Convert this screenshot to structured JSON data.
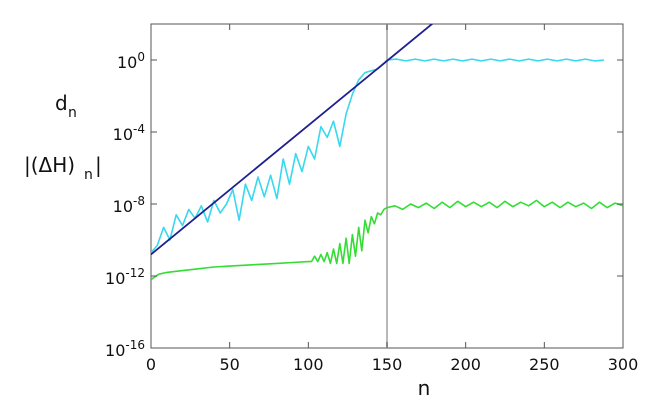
{
  "chart_data": {
    "type": "line",
    "title": "",
    "xlabel": "n",
    "ylabel_lines": [
      "d",
      "n",
      "|(ΔH)",
      "n",
      "|"
    ],
    "xlim": [
      0,
      300
    ],
    "ylim_log10": [
      -16,
      2
    ],
    "y_scale": "log",
    "grid": false,
    "legend": "none",
    "x_ticks": [
      0,
      50,
      100,
      150,
      200,
      250,
      300
    ],
    "x_tick_labels": [
      "0",
      "50",
      "100",
      "150",
      "200",
      "250",
      "300"
    ],
    "y_ticks_log10": [
      -16,
      -12,
      -8,
      -4,
      0
    ],
    "y_tick_labels": [
      {
        "base": "10",
        "exp": "-16"
      },
      {
        "base": "10",
        "exp": "-12"
      },
      {
        "base": "10",
        "exp": "-8"
      },
      {
        "base": "10",
        "exp": "-4"
      },
      {
        "base": "10",
        "exp": "0"
      }
    ],
    "vertical_marker": {
      "x": 150,
      "color": "#b8b8b8"
    },
    "series": [
      {
        "color": "#38d8ee",
        "x": [
          0,
          4,
          8,
          12,
          16,
          20,
          24,
          28,
          32,
          36,
          40,
          44,
          48,
          52,
          56,
          60,
          64,
          68,
          72,
          76,
          80,
          84,
          88,
          92,
          96,
          100,
          104,
          108,
          112,
          116,
          120,
          124,
          128,
          132,
          136,
          140,
          144,
          148,
          150,
          156,
          162,
          168,
          174,
          180,
          186,
          192,
          198,
          204,
          210,
          216,
          222,
          228,
          234,
          240,
          246,
          252,
          258,
          264,
          270,
          276,
          282,
          288,
          294,
          300
        ],
        "log10_y": [
          -10.7,
          -10.3,
          -9.3,
          -10.0,
          -8.6,
          -9.2,
          -8.3,
          -8.8,
          -8.1,
          -9.0,
          -7.8,
          -8.5,
          -8.0,
          -7.2,
          -8.9,
          -6.9,
          -7.8,
          -6.5,
          -7.6,
          -6.4,
          -7.7,
          -5.5,
          -6.9,
          -5.2,
          -6.2,
          -4.8,
          -5.5,
          -3.7,
          -4.3,
          -3.4,
          -4.8,
          -3.0,
          -1.9,
          -1.1,
          -0.7,
          -0.6,
          -0.5,
          -0.2,
          0.0,
          0.05,
          -0.05,
          0.05,
          -0.05,
          0.05,
          -0.05,
          0.05,
          -0.05,
          0.05,
          -0.05,
          0.05,
          -0.05,
          0.05,
          -0.05,
          0.05,
          -0.05,
          0.05,
          -0.05,
          0.05,
          -0.05,
          0.05,
          -0.05,
          0.0
        ]
      },
      {
        "color": "#1f1f8f",
        "x": [
          0,
          180
        ],
        "log10_y": [
          -10.8,
          2.1
        ]
      },
      {
        "color": "#33dd33",
        "x": [
          0,
          5,
          10,
          20,
          30,
          40,
          50,
          60,
          70,
          80,
          90,
          100,
          102,
          104,
          106,
          108,
          110,
          112,
          114,
          116,
          118,
          120,
          122,
          124,
          126,
          128,
          130,
          132,
          134,
          136,
          138,
          140,
          142,
          144,
          146,
          148,
          150,
          155,
          160,
          165,
          170,
          175,
          180,
          185,
          190,
          195,
          200,
          205,
          210,
          215,
          220,
          225,
          230,
          235,
          240,
          245,
          250,
          255,
          260,
          265,
          270,
          275,
          280,
          285,
          290,
          295,
          300
        ],
        "log10_y": [
          -12.2,
          -11.9,
          -11.8,
          -11.7,
          -11.6,
          -11.5,
          -11.45,
          -11.4,
          -11.35,
          -11.3,
          -11.25,
          -11.2,
          -11.2,
          -10.9,
          -11.2,
          -10.8,
          -11.2,
          -10.7,
          -11.3,
          -10.5,
          -11.3,
          -10.2,
          -11.3,
          -9.9,
          -11.3,
          -9.7,
          -10.9,
          -9.3,
          -10.6,
          -8.9,
          -9.6,
          -8.7,
          -9.1,
          -8.5,
          -8.6,
          -8.3,
          -8.2,
          -8.1,
          -8.3,
          -8.0,
          -8.2,
          -7.95,
          -8.25,
          -7.9,
          -8.2,
          -7.85,
          -8.15,
          -7.9,
          -8.15,
          -7.9,
          -8.2,
          -7.85,
          -8.15,
          -7.9,
          -8.1,
          -7.8,
          -8.15,
          -7.9,
          -8.2,
          -7.9,
          -8.15,
          -7.95,
          -8.25,
          -7.9,
          -8.2,
          -7.95,
          -8.1
        ]
      }
    ]
  }
}
